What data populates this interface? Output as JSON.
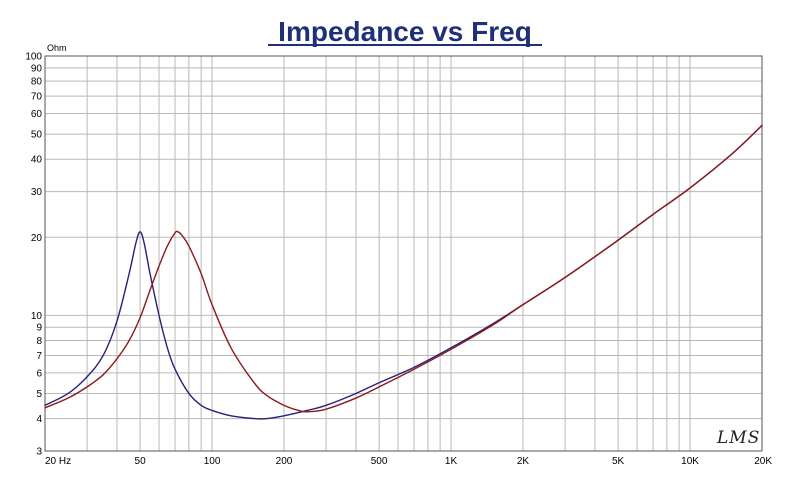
{
  "chart_data": {
    "type": "line",
    "title": "Impedance vs Freq",
    "yunit": "Ohm",
    "x_scale": "log",
    "y_scale": "log",
    "xlim": [
      20,
      20000
    ],
    "ylim": [
      3,
      100
    ],
    "grid": true,
    "x_tick_labels": [
      {
        "v": 20,
        "label": "20 Hz"
      },
      {
        "v": 50,
        "label": "50"
      },
      {
        "v": 100,
        "label": "100"
      },
      {
        "v": 200,
        "label": "200"
      },
      {
        "v": 500,
        "label": "500"
      },
      {
        "v": 1000,
        "label": "1K"
      },
      {
        "v": 2000,
        "label": "2K"
      },
      {
        "v": 5000,
        "label": "5K"
      },
      {
        "v": 10000,
        "label": "10K"
      },
      {
        "v": 20000,
        "label": "20K"
      }
    ],
    "y_tick_labels": [
      {
        "v": 3,
        "label": "3"
      },
      {
        "v": 4,
        "label": "4"
      },
      {
        "v": 5,
        "label": "5"
      },
      {
        "v": 6,
        "label": "6"
      },
      {
        "v": 7,
        "label": "7"
      },
      {
        "v": 8,
        "label": "8"
      },
      {
        "v": 9,
        "label": "9"
      },
      {
        "v": 10,
        "label": "10"
      },
      {
        "v": 20,
        "label": "20"
      },
      {
        "v": 30,
        "label": "30"
      },
      {
        "v": 40,
        "label": "40"
      },
      {
        "v": 50,
        "label": "50"
      },
      {
        "v": 60,
        "label": "60"
      },
      {
        "v": 70,
        "label": "70"
      },
      {
        "v": 80,
        "label": "80"
      },
      {
        "v": 90,
        "label": "90"
      },
      {
        "v": 100,
        "label": "100"
      }
    ],
    "series": [
      {
        "color": "#2a1f7a",
        "x": [
          20,
          25,
          30,
          35,
          40,
          45,
          48,
          50,
          52,
          55,
          60,
          65,
          70,
          80,
          90,
          100,
          120,
          150,
          170,
          200,
          250,
          300,
          400,
          500,
          700,
          1000,
          1500,
          2000,
          3000,
          5000,
          7000,
          10000,
          15000,
          20000
        ],
        "y": [
          4.5,
          5.0,
          5.8,
          7.0,
          9.5,
          14.5,
          19.0,
          21.0,
          19.0,
          14.5,
          10.0,
          7.5,
          6.2,
          5.0,
          4.5,
          4.3,
          4.1,
          4.0,
          4.0,
          4.1,
          4.3,
          4.5,
          5.0,
          5.5,
          6.3,
          7.5,
          9.3,
          11.0,
          14.0,
          19.5,
          24.5,
          31.0,
          42.0,
          54.0
        ]
      },
      {
        "color": "#8b1a1a",
        "x": [
          20,
          25,
          30,
          35,
          40,
          45,
          50,
          55,
          60,
          65,
          70,
          72,
          75,
          80,
          90,
          100,
          120,
          150,
          170,
          200,
          230,
          250,
          300,
          400,
          500,
          700,
          1000,
          1500,
          2000,
          3000,
          5000,
          7000,
          10000,
          15000,
          20000
        ],
        "y": [
          4.4,
          4.8,
          5.3,
          5.9,
          6.8,
          8.0,
          9.8,
          12.5,
          15.5,
          18.5,
          20.8,
          21.0,
          20.3,
          18.5,
          14.5,
          11.0,
          7.5,
          5.5,
          4.9,
          4.5,
          4.3,
          4.25,
          4.35,
          4.8,
          5.3,
          6.2,
          7.4,
          9.2,
          11.0,
          14.0,
          19.5,
          24.5,
          31.0,
          42.0,
          54.0
        ]
      }
    ]
  },
  "signature": "LMS",
  "colors": {
    "grid": "#b8b8b8",
    "border": "#555555",
    "title": "#1f2f78"
  }
}
